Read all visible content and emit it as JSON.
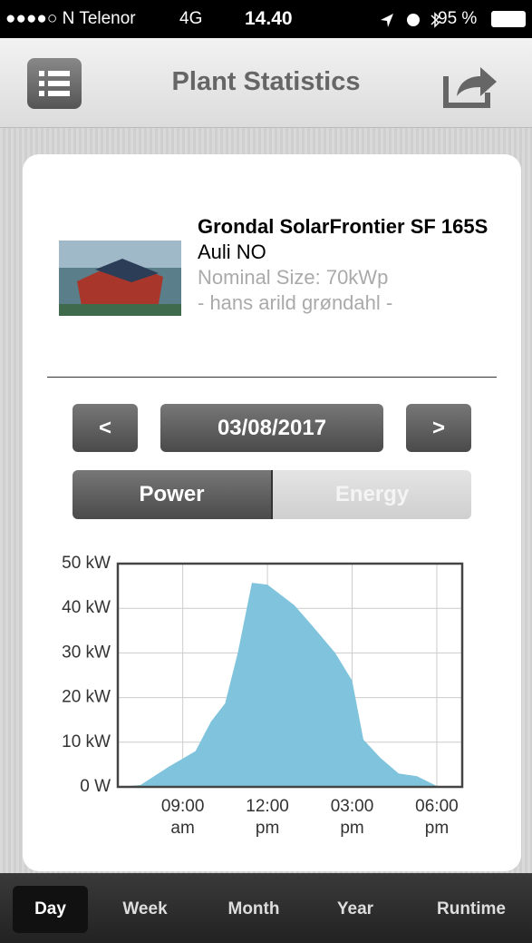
{
  "status_bar": {
    "carrier": "●●●●○ N Telenor",
    "network": "4G",
    "time": "14.40",
    "battery": "95 %"
  },
  "header": {
    "title": "Plant Statistics"
  },
  "plant": {
    "name": "Grondal SolarFrontier SF 165S",
    "location": "Auli NO",
    "nominal_size": "Nominal Size: 70kWp",
    "owner": "- hans arild grøndahl -"
  },
  "date_nav": {
    "prev": "<",
    "date": "03/08/2017",
    "next": ">"
  },
  "mode_toggle": [
    {
      "label": "Power",
      "selected": true
    },
    {
      "label": "Energy",
      "selected": false
    }
  ],
  "chart_data": {
    "type": "area",
    "color": "#7fc3dc",
    "grid": true,
    "x": [
      6.7,
      7.5,
      8.5,
      9.45,
      10,
      10.5,
      10.95,
      11.45,
      12,
      12.95,
      13.6,
      14.4,
      15,
      15.4,
      16,
      16.65,
      17.3,
      18,
      18.9
    ],
    "values": [
      0,
      0.4,
      4.5,
      8,
      14.6,
      18.7,
      30,
      45.7,
      45.3,
      40.7,
      36,
      30,
      23.8,
      10.6,
      6.5,
      3,
      2.4,
      0.2,
      0
    ],
    "xlim": [
      6.7,
      18.9
    ],
    "xticks": [
      {
        "value": 9,
        "label": "09:00 am"
      },
      {
        "value": 12,
        "label": "12:00 pm"
      },
      {
        "value": 15,
        "label": "03:00 pm"
      },
      {
        "value": 18,
        "label": "06:00 pm"
      }
    ],
    "ylim": [
      0,
      50
    ],
    "yticks": [
      {
        "value": 0,
        "label": "0 W"
      },
      {
        "value": 10,
        "label": "10 kW"
      },
      {
        "value": 20,
        "label": "20 kW"
      },
      {
        "value": 30,
        "label": "30 kW"
      },
      {
        "value": 40,
        "label": "40 kW"
      },
      {
        "value": 50,
        "label": "50 kW"
      }
    ]
  },
  "bottom_tabs": [
    {
      "label": "Day",
      "selected": true
    },
    {
      "label": "Week",
      "selected": false
    },
    {
      "label": "Month",
      "selected": false
    },
    {
      "label": "Year",
      "selected": false
    },
    {
      "label": "Runtime",
      "selected": false
    }
  ]
}
